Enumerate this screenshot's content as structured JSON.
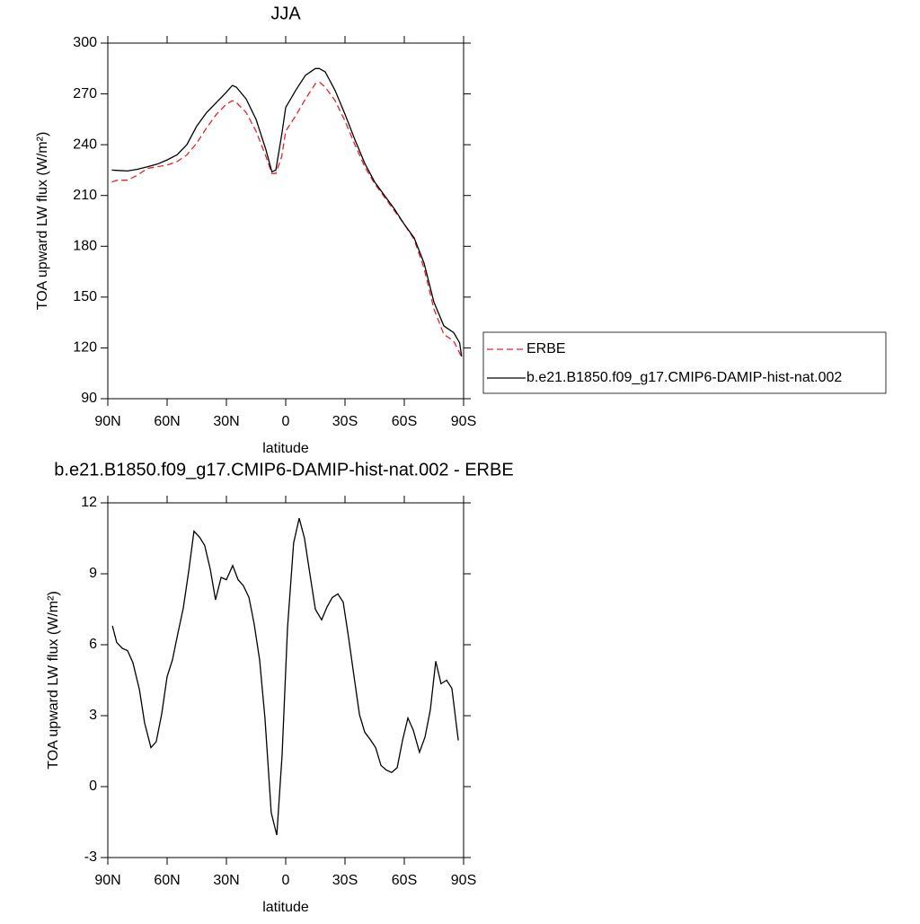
{
  "chart_data": [
    {
      "type": "line",
      "title": "JJA",
      "xlabel": "latitude",
      "ylabel": "TOA upward LW flux (W/m²)",
      "x": [
        88,
        85,
        80,
        75,
        70,
        65,
        60,
        55,
        50,
        45,
        40,
        35,
        30,
        27,
        25,
        20,
        15,
        10,
        7,
        5,
        2,
        0,
        -5,
        -10,
        -15,
        -17,
        -20,
        -25,
        -30,
        -35,
        -40,
        -45,
        -50,
        -55,
        -60,
        -65,
        -70,
        -75,
        -80,
        -85,
        -88,
        -89
      ],
      "series": [
        {
          "name": "ERBE",
          "color": "#e8202a",
          "dash": true,
          "values": [
            218,
            219,
            219,
            222,
            226,
            227,
            228,
            230,
            234,
            241,
            250,
            258,
            264,
            266,
            265,
            259,
            248,
            233,
            223,
            223,
            233,
            248,
            257,
            267,
            276,
            277,
            274,
            266,
            254,
            240,
            227,
            217,
            209,
            201,
            193,
            184,
            167,
            143,
            128,
            124,
            117,
            114
          ]
        },
        {
          "name": "b.e21.B1850.f09_g17.CMIP6-DAMIP-hist-nat.002",
          "color": "#000000",
          "dash": false,
          "values": [
            225,
            224.8,
            224.5,
            225.5,
            227,
            228.5,
            231,
            234,
            240,
            251,
            259,
            265,
            271,
            275,
            274,
            267,
            255,
            237,
            224,
            225,
            246,
            262,
            272,
            281,
            285,
            285,
            283,
            272,
            258,
            243,
            229,
            218,
            210,
            202,
            193,
            185,
            170,
            147,
            133,
            129,
            123,
            115
          ]
        }
      ],
      "xlim": [
        90,
        -90
      ],
      "xticks": [
        {
          "value": 90,
          "label": "90N"
        },
        {
          "value": 60,
          "label": "60N"
        },
        {
          "value": 30,
          "label": "30N"
        },
        0,
        {
          "value": -30,
          "label": "30S"
        },
        {
          "value": -60,
          "label": "60S"
        },
        {
          "value": -90,
          "label": "90S"
        }
      ],
      "ylim": [
        90,
        300
      ],
      "yticks": [
        90,
        120,
        150,
        180,
        210,
        240,
        270,
        300
      ],
      "legend": "right"
    },
    {
      "type": "line",
      "title": "b.e21.B1850.f09_g17.CMIP6-DAMIP-hist-nat.002 - ERBE",
      "xlabel": "latitude",
      "ylabel": "TOA upward LW flux (W/m²)",
      "x": [
        87.7,
        85.5,
        82.7,
        80,
        77.3,
        74,
        71.4,
        68.2,
        65.5,
        62.7,
        60,
        57.3,
        54.5,
        51.8,
        49,
        46.4,
        43.6,
        41,
        38.2,
        35.5,
        32.7,
        30,
        26.8,
        24.1,
        21.4,
        18.6,
        16,
        13.2,
        10.5,
        7.3,
        4.5,
        1.8,
        -0.9,
        -4,
        -6.8,
        -9.5,
        -12.3,
        -15,
        -18.2,
        -20.9,
        -23.6,
        -26.4,
        -29.1,
        -31.8,
        -34.5,
        -37.3,
        -40,
        -42.7,
        -45.5,
        -48.2,
        -50.9,
        -53.6,
        -56.4,
        -59.1,
        -61.8,
        -64.5,
        -67.7,
        -70.5,
        -73.2,
        -75.9,
        -78.6,
        -81.4,
        -84.1,
        -87.3
      ],
      "series": [
        {
          "color": "#000000",
          "dash": false,
          "values": [
            6.8,
            6.1,
            5.85,
            5.75,
            5.25,
            4.1,
            2.7,
            1.65,
            1.9,
            3.1,
            4.65,
            5.35,
            6.5,
            7.55,
            9.15,
            10.8,
            10.55,
            10.2,
            9.2,
            7.9,
            8.85,
            8.75,
            9.35,
            8.75,
            8.5,
            8,
            6.9,
            5.35,
            2.9,
            -1.1,
            -2.05,
            1.35,
            6.7,
            10.3,
            11.35,
            10.5,
            8.95,
            7.5,
            7.05,
            7.6,
            8,
            8.15,
            7.8,
            6.3,
            4.7,
            3.05,
            2.3,
            2,
            1.65,
            0.9,
            0.7,
            0.6,
            0.8,
            1.95,
            2.9,
            2.4,
            1.45,
            2.1,
            3.25,
            5.3,
            4.35,
            4.5,
            4.15,
            1.95
          ]
        }
      ],
      "xlim": [
        90,
        -90
      ],
      "xticks": [
        {
          "value": 90,
          "label": "90N"
        },
        {
          "value": 60,
          "label": "60N"
        },
        {
          "value": 30,
          "label": "30N"
        },
        0,
        {
          "value": -30,
          "label": "30S"
        },
        {
          "value": -60,
          "label": "60S"
        },
        {
          "value": -90,
          "label": "90S"
        }
      ],
      "ylim": [
        -3,
        12
      ],
      "yticks": [
        -3,
        0,
        3,
        6,
        9,
        12
      ]
    }
  ]
}
